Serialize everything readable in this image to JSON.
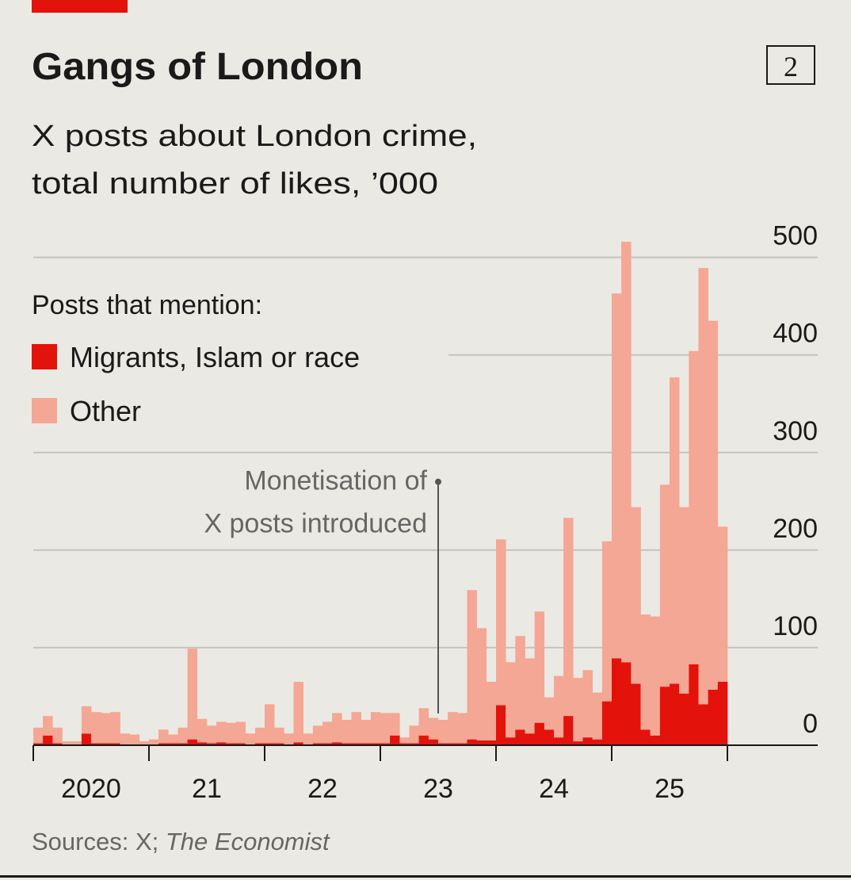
{
  "chart_data": {
    "type": "stacked-bar",
    "title": "Gangs of London",
    "badge": "2",
    "subtitle": [
      "X posts about London crime,",
      "total number of likes, ’000"
    ],
    "legend_title": "Posts that mention:",
    "source": "Sources: X;",
    "source_italic": "The Economist",
    "annotation": {
      "lines": [
        "Monetisation of",
        "X posts introduced"
      ],
      "x": 2023.5,
      "y": 270
    },
    "x": [
      2020,
      2020.083,
      2020.167,
      2020.25,
      2020.333,
      2020.417,
      2020.5,
      2020.583,
      2020.667,
      2020.75,
      2020.833,
      2020.917,
      2021,
      2021.083,
      2021.167,
      2021.25,
      2021.333,
      2021.417,
      2021.5,
      2021.583,
      2021.667,
      2021.75,
      2021.833,
      2021.917,
      2022,
      2022.083,
      2022.167,
      2022.25,
      2022.333,
      2022.417,
      2022.5,
      2022.583,
      2022.667,
      2022.75,
      2022.833,
      2022.917,
      2023,
      2023.083,
      2023.167,
      2023.25,
      2023.333,
      2023.417,
      2023.5,
      2023.583,
      2023.667,
      2023.75,
      2023.833,
      2023.917,
      2024,
      2024.083,
      2024.167,
      2024.25,
      2024.333,
      2024.417,
      2024.5,
      2024.583,
      2024.667,
      2024.75,
      2024.833,
      2024.917,
      2025,
      2025.083,
      2025.167,
      2025.25,
      2025.333,
      2025.417,
      2025.5,
      2025.583,
      2025.667,
      2025.75,
      2025.833,
      2025.917
    ],
    "series": [
      {
        "name": "Migrants, Islam or race",
        "color": "#e3120b",
        "values": [
          2,
          10,
          2,
          1,
          1,
          12,
          2,
          2,
          2,
          1,
          1,
          1,
          1,
          2,
          2,
          2,
          6,
          3,
          2,
          3,
          2,
          2,
          1,
          2,
          2,
          2,
          1,
          3,
          1,
          2,
          2,
          3,
          2,
          2,
          2,
          2,
          2,
          10,
          2,
          2,
          10,
          6,
          2,
          2,
          2,
          6,
          5,
          5,
          41,
          8,
          16,
          12,
          23,
          16,
          8,
          30,
          4,
          8,
          6,
          45,
          89,
          85,
          63,
          16,
          10,
          60,
          63,
          53,
          83,
          42,
          57,
          65
        ]
      },
      {
        "name": "Other",
        "color": "#f4a794",
        "values": [
          16,
          20,
          16,
          3,
          3,
          28,
          32,
          31,
          32,
          11,
          10,
          3,
          5,
          14,
          9,
          16,
          93,
          24,
          18,
          21,
          21,
          22,
          11,
          16,
          40,
          16,
          11,
          62,
          11,
          18,
          22,
          30,
          24,
          32,
          24,
          32,
          31,
          23,
          6,
          18,
          28,
          22,
          24,
          32,
          31,
          153,
          115,
          60,
          170,
          77,
          96,
          77,
          114,
          33,
          63,
          203,
          65,
          69,
          48,
          164,
          374,
          431,
          181,
          118,
          122,
          207,
          314,
          191,
          321,
          447,
          378,
          159
        ]
      }
    ],
    "xlim": [
      2020,
      2026.75
    ],
    "xticks": [
      {
        "value": 2020,
        "label": "2020"
      },
      {
        "value": 2021,
        "label": "21"
      },
      {
        "value": 2022,
        "label": "22"
      },
      {
        "value": 2023,
        "label": "23"
      },
      {
        "value": 2024,
        "label": "24"
      },
      {
        "value": 2025,
        "label": "25"
      },
      {
        "value": 2026,
        "label": null
      }
    ],
    "ylim": [
      0,
      520
    ],
    "yticks": [
      0,
      100,
      200,
      300,
      400,
      500
    ],
    "grid": true
  }
}
